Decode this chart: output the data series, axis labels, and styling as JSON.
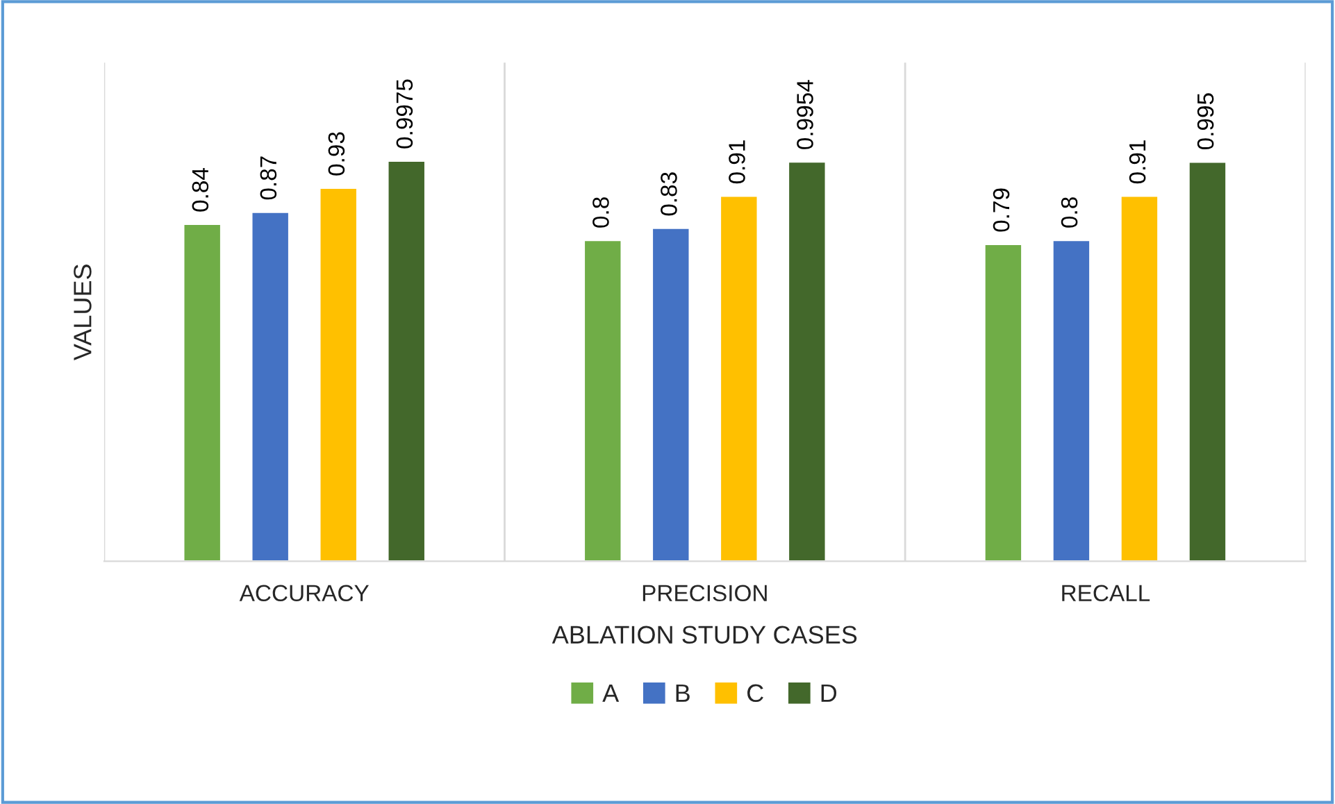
{
  "chart_data": {
    "type": "bar",
    "xlabel": "ABLATION STUDY CASES",
    "ylabel": "VALUES",
    "categories": [
      "ACCURACY",
      "PRECISION",
      "RECALL"
    ],
    "series": [
      {
        "name": "A",
        "color": "#70ad47",
        "values": [
          0.84,
          0.8,
          0.79
        ]
      },
      {
        "name": "B",
        "color": "#4472c4",
        "values": [
          0.87,
          0.83,
          0.8
        ]
      },
      {
        "name": "C",
        "color": "#ffc000",
        "values": [
          0.93,
          0.91,
          0.91
        ]
      },
      {
        "name": "D",
        "color": "#43682b",
        "values": [
          0.9975,
          0.9954,
          0.995
        ]
      }
    ],
    "data_labels": true,
    "grid": "x",
    "legend": "bottom"
  }
}
